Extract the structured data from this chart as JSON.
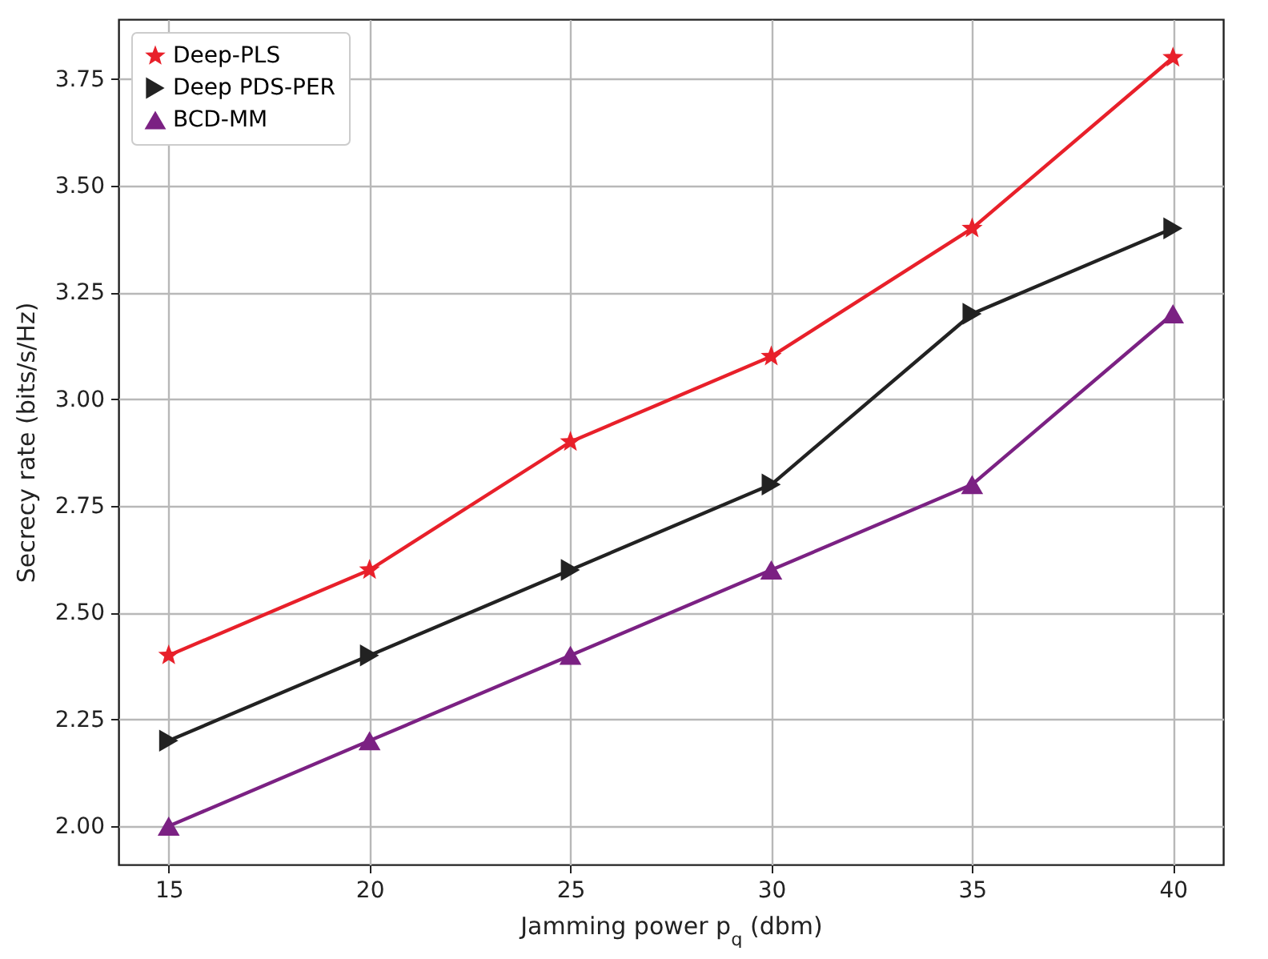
{
  "chart_data": {
    "type": "line",
    "xlabel": "Jamming power p$_{q}$ (dbm)",
    "ylabel": "Secrecy rate (bits/s/Hz)",
    "x": [
      15,
      20,
      25,
      30,
      35,
      40
    ],
    "series": [
      {
        "name": "Deep-PLS",
        "color": "#e8202a",
        "marker": "star",
        "values": [
          2.4,
          2.6,
          2.9,
          3.1,
          3.4,
          3.8
        ]
      },
      {
        "name": "Deep PDS-PER",
        "color": "#222222",
        "marker": "triangle-right",
        "values": [
          2.2,
          2.4,
          2.6,
          2.8,
          3.2,
          3.4
        ]
      },
      {
        "name": "BCD-MM",
        "color": "#7b2183",
        "marker": "triangle",
        "values": [
          2.0,
          2.2,
          2.4,
          2.6,
          2.8,
          3.2
        ]
      }
    ],
    "xlim": [
      13.75,
      41.25
    ],
    "xticks": [
      15,
      20,
      25,
      30,
      35,
      40
    ],
    "ylim": [
      1.91,
      3.89
    ],
    "yticks": [
      {
        "value": 2.0,
        "label": "2.00"
      },
      {
        "value": 2.25,
        "label": "2.25"
      },
      {
        "value": 2.5,
        "label": "2.50"
      },
      {
        "value": 2.75,
        "label": "2.75"
      },
      {
        "value": 3.0,
        "label": "3.00"
      },
      {
        "value": 3.25,
        "label": "3.25"
      },
      {
        "value": 3.5,
        "label": "3.50"
      },
      {
        "value": 3.75,
        "label": "3.75"
      }
    ],
    "grid": true,
    "legend": "top left",
    "line_style": "solid"
  }
}
